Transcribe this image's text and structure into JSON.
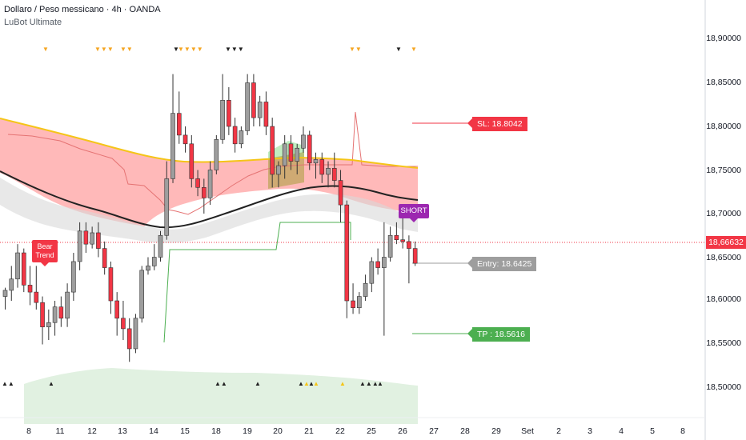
{
  "header": {
    "title": "Dollaro / Peso messicano · 4h · OANDA",
    "indicator": "LuBot Ultimate"
  },
  "price_axis": {
    "ticks": [
      "18,90000",
      "18,85000",
      "18,80000",
      "18,75000",
      "18,70000",
      "18,65000",
      "18,60000",
      "18,55000",
      "18,50000"
    ],
    "tick_values": [
      18.9,
      18.85,
      18.8,
      18.75,
      18.7,
      18.65,
      18.6,
      18.55,
      18.5
    ],
    "current_price": "18,66632",
    "current_value": 18.66632
  },
  "time_axis": {
    "ticks": [
      "8",
      "11",
      "12",
      "13",
      "14",
      "15",
      "18",
      "19",
      "20",
      "21",
      "22",
      "25",
      "26",
      "27",
      "28",
      "29",
      "Set",
      "2",
      "3",
      "4",
      "5",
      "8"
    ]
  },
  "labels": {
    "bear_trend": "Bear Trend",
    "short": "SHORT",
    "sl": "SL: 18.8042",
    "entry": "Entry: 18.6425",
    "tp": "TP : 18.5616"
  },
  "levels": {
    "sl": 18.8042,
    "entry": 18.6425,
    "tp": 18.5616
  },
  "colors": {
    "bull": "#9e9e9e",
    "bear": "#f23645",
    "cloud": "#ff8a8a",
    "avg_line": "#f5c518",
    "trail_green": "#4caf50",
    "sl": "#f23645",
    "tp": "#4caf50",
    "short": "#9c27b0"
  },
  "chart_data": {
    "type": "candlestick",
    "instrument": "Dollaro / Peso messicano",
    "timeframe": "4h",
    "ylim": [
      18.46,
      18.92
    ],
    "candles": [
      {
        "o": 18.605,
        "h": 18.615,
        "l": 18.59,
        "c": 18.612
      },
      {
        "o": 18.612,
        "h": 18.64,
        "l": 18.6,
        "c": 18.625
      },
      {
        "o": 18.625,
        "h": 18.665,
        "l": 18.615,
        "c": 18.655
      },
      {
        "o": 18.655,
        "h": 18.66,
        "l": 18.61,
        "c": 18.618
      },
      {
        "o": 18.618,
        "h": 18.64,
        "l": 18.595,
        "c": 18.61
      },
      {
        "o": 18.61,
        "h": 18.64,
        "l": 18.59,
        "c": 18.598
      },
      {
        "o": 18.598,
        "h": 18.605,
        "l": 18.55,
        "c": 18.57
      },
      {
        "o": 18.57,
        "h": 18.59,
        "l": 18.555,
        "c": 18.575
      },
      {
        "o": 18.575,
        "h": 18.6,
        "l": 18.56,
        "c": 18.593
      },
      {
        "o": 18.593,
        "h": 18.605,
        "l": 18.57,
        "c": 18.58
      },
      {
        "o": 18.58,
        "h": 18.62,
        "l": 18.57,
        "c": 18.61
      },
      {
        "o": 18.61,
        "h": 18.655,
        "l": 18.6,
        "c": 18.645
      },
      {
        "o": 18.645,
        "h": 18.69,
        "l": 18.635,
        "c": 18.68
      },
      {
        "o": 18.68,
        "h": 18.69,
        "l": 18.655,
        "c": 18.665
      },
      {
        "o": 18.665,
        "h": 18.685,
        "l": 18.66,
        "c": 18.678
      },
      {
        "o": 18.678,
        "h": 18.69,
        "l": 18.65,
        "c": 18.66
      },
      {
        "o": 18.66,
        "h": 18.668,
        "l": 18.63,
        "c": 18.638
      },
      {
        "o": 18.638,
        "h": 18.645,
        "l": 18.585,
        "c": 18.6
      },
      {
        "o": 18.6,
        "h": 18.61,
        "l": 18.56,
        "c": 18.58
      },
      {
        "o": 18.58,
        "h": 18.6,
        "l": 18.555,
        "c": 18.568
      },
      {
        "o": 18.568,
        "h": 18.58,
        "l": 18.53,
        "c": 18.545
      },
      {
        "o": 18.545,
        "h": 18.585,
        "l": 18.54,
        "c": 18.58
      },
      {
        "o": 18.58,
        "h": 18.64,
        "l": 18.575,
        "c": 18.635
      },
      {
        "o": 18.635,
        "h": 18.65,
        "l": 18.63,
        "c": 18.64
      },
      {
        "o": 18.64,
        "h": 18.665,
        "l": 18.635,
        "c": 18.65
      },
      {
        "o": 18.65,
        "h": 18.68,
        "l": 18.645,
        "c": 18.675
      },
      {
        "o": 18.675,
        "h": 18.76,
        "l": 18.67,
        "c": 18.74
      },
      {
        "o": 18.74,
        "h": 18.86,
        "l": 18.735,
        "c": 18.815
      },
      {
        "o": 18.815,
        "h": 18.84,
        "l": 18.78,
        "c": 18.79
      },
      {
        "o": 18.79,
        "h": 18.8,
        "l": 18.77,
        "c": 18.78
      },
      {
        "o": 18.78,
        "h": 18.79,
        "l": 18.73,
        "c": 18.74
      },
      {
        "o": 18.74,
        "h": 18.75,
        "l": 18.72,
        "c": 18.73
      },
      {
        "o": 18.73,
        "h": 18.74,
        "l": 18.7,
        "c": 18.718
      },
      {
        "o": 18.718,
        "h": 18.76,
        "l": 18.71,
        "c": 18.75
      },
      {
        "o": 18.75,
        "h": 18.79,
        "l": 18.745,
        "c": 18.785
      },
      {
        "o": 18.785,
        "h": 18.86,
        "l": 18.78,
        "c": 18.83
      },
      {
        "o": 18.83,
        "h": 18.845,
        "l": 18.79,
        "c": 18.8
      },
      {
        "o": 18.8,
        "h": 18.81,
        "l": 18.77,
        "c": 18.78
      },
      {
        "o": 18.78,
        "h": 18.8,
        "l": 18.775,
        "c": 18.795
      },
      {
        "o": 18.795,
        "h": 18.86,
        "l": 18.79,
        "c": 18.85
      },
      {
        "o": 18.85,
        "h": 18.86,
        "l": 18.8,
        "c": 18.81
      },
      {
        "o": 18.81,
        "h": 18.835,
        "l": 18.8,
        "c": 18.828
      },
      {
        "o": 18.828,
        "h": 18.84,
        "l": 18.79,
        "c": 18.8
      },
      {
        "o": 18.8,
        "h": 18.81,
        "l": 18.73,
        "c": 18.745
      },
      {
        "o": 18.745,
        "h": 18.76,
        "l": 18.73,
        "c": 18.755
      },
      {
        "o": 18.755,
        "h": 18.79,
        "l": 18.74,
        "c": 18.78
      },
      {
        "o": 18.78,
        "h": 18.79,
        "l": 18.75,
        "c": 18.76
      },
      {
        "o": 18.76,
        "h": 18.78,
        "l": 18.745,
        "c": 18.775
      },
      {
        "o": 18.775,
        "h": 18.8,
        "l": 18.77,
        "c": 18.79
      },
      {
        "o": 18.79,
        "h": 18.795,
        "l": 18.75,
        "c": 18.758
      },
      {
        "o": 18.758,
        "h": 18.77,
        "l": 18.74,
        "c": 18.762
      },
      {
        "o": 18.762,
        "h": 18.77,
        "l": 18.735,
        "c": 18.745
      },
      {
        "o": 18.745,
        "h": 18.76,
        "l": 18.73,
        "c": 18.752
      },
      {
        "o": 18.752,
        "h": 18.77,
        "l": 18.73,
        "c": 18.738
      },
      {
        "o": 18.738,
        "h": 18.75,
        "l": 18.69,
        "c": 18.71
      },
      {
        "o": 18.71,
        "h": 18.715,
        "l": 18.58,
        "c": 18.6
      },
      {
        "o": 18.6,
        "h": 18.62,
        "l": 18.585,
        "c": 18.592
      },
      {
        "o": 18.592,
        "h": 18.61,
        "l": 18.585,
        "c": 18.605
      },
      {
        "o": 18.605,
        "h": 18.63,
        "l": 18.6,
        "c": 18.62
      },
      {
        "o": 18.62,
        "h": 18.65,
        "l": 18.61,
        "c": 18.645
      },
      {
        "o": 18.645,
        "h": 18.66,
        "l": 18.63,
        "c": 18.638
      },
      {
        "o": 18.638,
        "h": 18.69,
        "l": 18.56,
        "c": 18.65
      },
      {
        "o": 18.65,
        "h": 18.685,
        "l": 18.645,
        "c": 18.675
      },
      {
        "o": 18.675,
        "h": 18.69,
        "l": 18.665,
        "c": 18.67
      },
      {
        "o": 18.67,
        "h": 18.7,
        "l": 18.66,
        "c": 18.668
      },
      {
        "o": 18.668,
        "h": 18.675,
        "l": 18.62,
        "c": 18.66
      },
      {
        "o": 18.66,
        "h": 18.668,
        "l": 18.64,
        "c": 18.643
      }
    ]
  }
}
